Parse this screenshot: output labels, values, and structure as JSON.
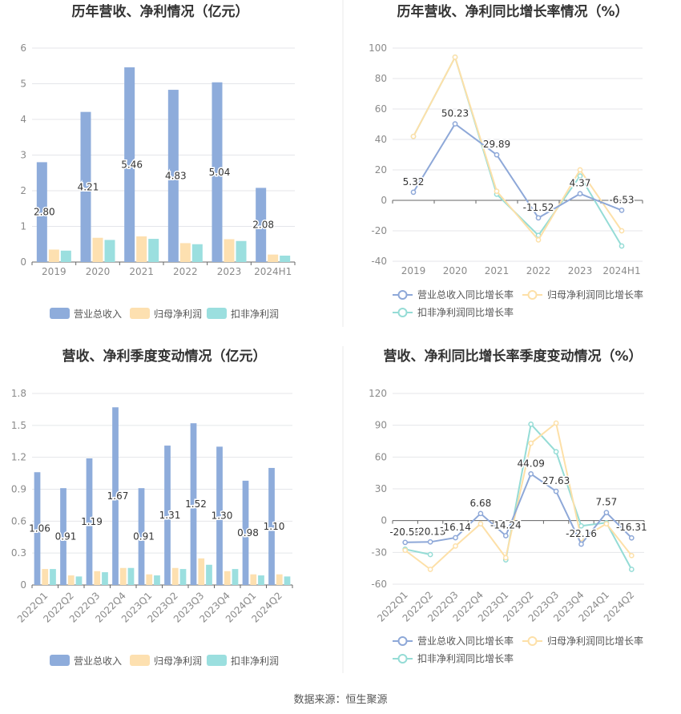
{
  "source": "数据来源：恒生聚源",
  "colors": {
    "revenue": "#8eacdb",
    "net_profit": "#fde0b0",
    "deducted_profit": "#9bdfdf",
    "revenue_line": "#8ea8d8",
    "net_profit_line": "#fde0a8",
    "deducted_line": "#95dcd6",
    "grid": "#e4e6ea",
    "axis": "#888888",
    "text": "#8a8a8a"
  },
  "chart_data": [
    {
      "id": "annual-amount",
      "type": "bar",
      "title": "历年营收、净利情况（亿元）",
      "categories": [
        "2019",
        "2020",
        "2021",
        "2022",
        "2023",
        "2024H1"
      ],
      "ylim": [
        0,
        6
      ],
      "yticks": [
        "0",
        "1",
        "2",
        "3",
        "4",
        "5",
        "6"
      ],
      "grid": true,
      "legend_position": "bottom",
      "series": [
        {
          "name": "营业总收入",
          "values": [
            2.8,
            4.21,
            5.46,
            4.83,
            5.04,
            2.08
          ],
          "labels": [
            "2.80",
            "4.21",
            "5.46",
            "4.83",
            "5.04",
            "2.08"
          ]
        },
        {
          "name": "归母净利润",
          "values": [
            0.35,
            0.68,
            0.72,
            0.53,
            0.64,
            0.21
          ]
        },
        {
          "name": "扣非净利润",
          "values": [
            0.32,
            0.62,
            0.65,
            0.5,
            0.59,
            0.18
          ]
        }
      ]
    },
    {
      "id": "annual-growth",
      "type": "line",
      "title": "历年营收、净利同比增长率情况（%）",
      "categories": [
        "2019",
        "2020",
        "2021",
        "2022",
        "2023",
        "2024H1"
      ],
      "ylim": [
        -40,
        100
      ],
      "yticks": [
        "-40",
        "-20",
        "0",
        "20",
        "40",
        "60",
        "80",
        "100"
      ],
      "grid": true,
      "legend_position": "bottom",
      "series": [
        {
          "name": "营业总收入同比增长率",
          "values": [
            5.32,
            50.23,
            29.89,
            -11.52,
            4.37,
            -6.53
          ],
          "labels": [
            "5.32",
            "50.23",
            "29.89",
            "-11.52",
            "4.37",
            "-6.53"
          ]
        },
        {
          "name": "归母净利润同比增长率",
          "values": [
            42,
            94,
            6,
            -26,
            20,
            -20
          ]
        },
        {
          "name": "扣非净利润同比增长率",
          "values": [
            42,
            94,
            4,
            -23,
            16,
            -30
          ]
        }
      ]
    },
    {
      "id": "quarterly-amount",
      "type": "bar",
      "title": "营收、净利季度变动情况（亿元）",
      "categories": [
        "2022Q1",
        "2022Q2",
        "2022Q3",
        "2022Q4",
        "2023Q1",
        "2023Q2",
        "2023Q3",
        "2023Q4",
        "2024Q1",
        "2024Q2"
      ],
      "ylim": [
        0,
        1.8
      ],
      "yticks": [
        "0",
        "0.3",
        "0.6",
        "0.9",
        "1.2",
        "1.5",
        "1.8"
      ],
      "grid": true,
      "legend_position": "bottom",
      "series": [
        {
          "name": "营业总收入",
          "values": [
            1.06,
            0.91,
            1.19,
            1.67,
            0.91,
            1.31,
            1.52,
            1.3,
            0.98,
            1.1
          ],
          "labels": [
            "1.06",
            "0.91",
            "1.19",
            "1.67",
            "0.91",
            "1.31",
            "1.52",
            "1.30",
            "0.98",
            "1.10"
          ]
        },
        {
          "name": "归母净利润",
          "values": [
            0.15,
            0.09,
            0.13,
            0.16,
            0.1,
            0.16,
            0.25,
            0.13,
            0.1,
            0.1
          ]
        },
        {
          "name": "扣非净利润",
          "values": [
            0.15,
            0.08,
            0.12,
            0.16,
            0.09,
            0.15,
            0.19,
            0.15,
            0.09,
            0.08
          ]
        }
      ]
    },
    {
      "id": "quarterly-growth",
      "type": "line",
      "title": "营收、净利同比增长率季度变动情况（%）",
      "categories": [
        "2022Q1",
        "2022Q2",
        "2022Q3",
        "2022Q4",
        "2023Q1",
        "2023Q2",
        "2023Q3",
        "2023Q4",
        "2024Q1",
        "2024Q2"
      ],
      "ylim": [
        -60,
        120
      ],
      "yticks": [
        "-60",
        "-30",
        "0",
        "30",
        "60",
        "90",
        "120"
      ],
      "grid": true,
      "legend_position": "bottom",
      "series": [
        {
          "name": "营业总收入同比增长率",
          "values": [
            -20.55,
            -20.13,
            -16.14,
            6.68,
            -14.24,
            44.09,
            27.63,
            -22.16,
            7.57,
            -16.31
          ],
          "labels": [
            "-20.55",
            "-20.13",
            "-16.14",
            "6.68",
            "-14.24",
            "44.09",
            "27.63",
            "-22.16",
            "7.57",
            "-16.31"
          ]
        },
        {
          "name": "归母净利润同比增长率",
          "values": [
            -28,
            -46,
            -24,
            -3,
            -35,
            73,
            92,
            -17,
            -3,
            -33
          ]
        },
        {
          "name": "扣非净利润同比增长率",
          "values": [
            -27,
            -32,
            null,
            null,
            -37,
            91,
            65,
            -5,
            -2,
            -46
          ]
        }
      ]
    }
  ]
}
